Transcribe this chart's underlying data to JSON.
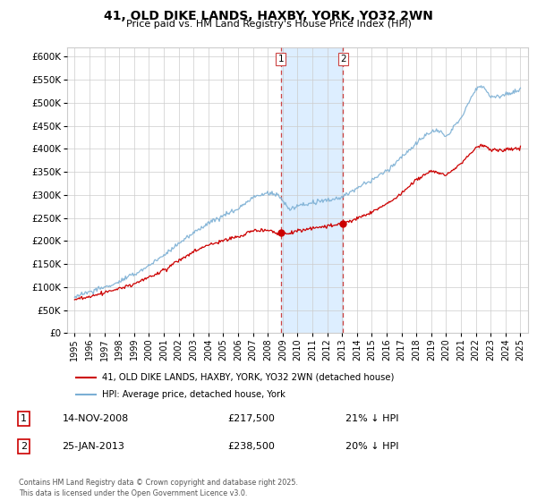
{
  "title": "41, OLD DIKE LANDS, HAXBY, YORK, YO32 2WN",
  "subtitle": "Price paid vs. HM Land Registry's House Price Index (HPI)",
  "footer": "Contains HM Land Registry data © Crown copyright and database right 2025.\nThis data is licensed under the Open Government Licence v3.0.",
  "legend_label_red": "41, OLD DIKE LANDS, HAXBY, YORK, YO32 2WN (detached house)",
  "legend_label_blue": "HPI: Average price, detached house, York",
  "sale1_date": "14-NOV-2008",
  "sale1_price": "£217,500",
  "sale1_pct": "21% ↓ HPI",
  "sale2_date": "25-JAN-2013",
  "sale2_price": "£238,500",
  "sale2_pct": "20% ↓ HPI",
  "sale1_x": 2008.87,
  "sale1_y": 217500,
  "sale2_x": 2013.07,
  "sale2_y": 238500,
  "shade_x1": 2008.87,
  "shade_x2": 2013.07,
  "red_color": "#cc0000",
  "blue_color": "#7bafd4",
  "shade_color": "#ddeeff",
  "grid_color": "#cccccc",
  "background_color": "#ffffff",
  "ylim": [
    0,
    620000
  ],
  "xlim_start": 1994.5,
  "xlim_end": 2025.5,
  "ytick_vals": [
    0,
    50000,
    100000,
    150000,
    200000,
    250000,
    300000,
    350000,
    400000,
    450000,
    500000,
    550000,
    600000
  ],
  "xticks": [
    1995,
    1996,
    1997,
    1998,
    1999,
    2000,
    2001,
    2002,
    2003,
    2004,
    2005,
    2006,
    2007,
    2008,
    2009,
    2010,
    2011,
    2012,
    2013,
    2014,
    2015,
    2016,
    2017,
    2018,
    2019,
    2020,
    2021,
    2022,
    2023,
    2024,
    2025
  ]
}
